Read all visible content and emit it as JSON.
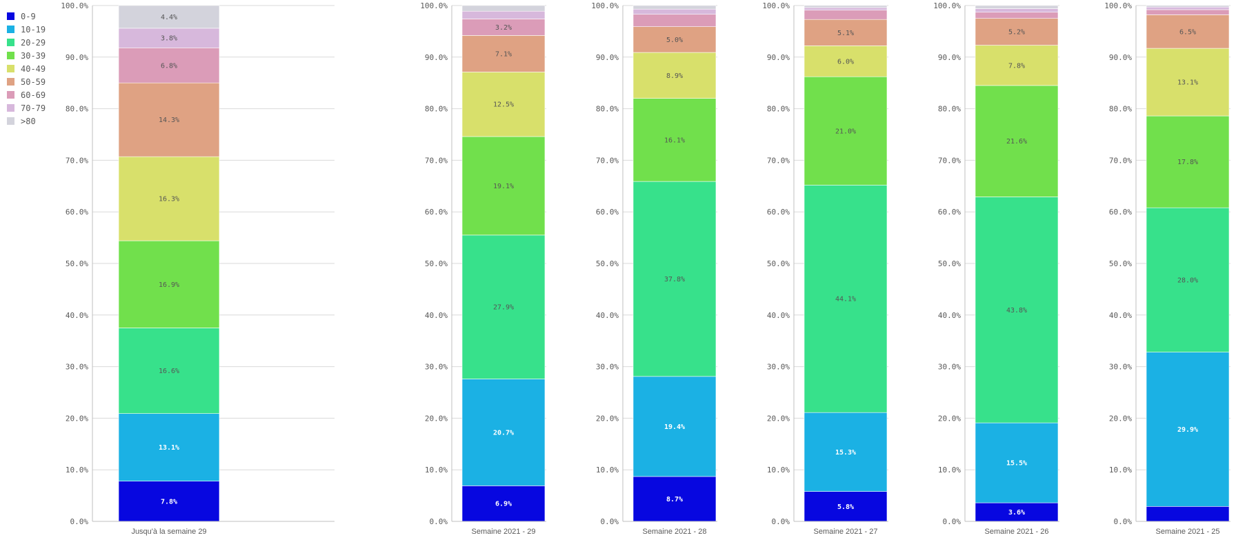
{
  "chart_data": {
    "type": "bar",
    "stacked": true,
    "normalized": true,
    "ylim": [
      0,
      100
    ],
    "y_ticks": [
      "0.0%",
      "10.0%",
      "20.0%",
      "30.0%",
      "40.0%",
      "50.0%",
      "60.0%",
      "70.0%",
      "80.0%",
      "90.0%",
      "100.0%"
    ],
    "grid": true,
    "legend_position": "top-left",
    "legend": [
      {
        "name": "0-9",
        "color": "#0707e0"
      },
      {
        "name": "10-19",
        "color": "#1bb1e4"
      },
      {
        "name": "20-29",
        "color": "#37e18b"
      },
      {
        "name": "30-39",
        "color": "#71e04c"
      },
      {
        "name": "40-49",
        "color": "#d8e06b"
      },
      {
        "name": "50-59",
        "color": "#dfa283"
      },
      {
        "name": "60-69",
        "color": "#db9cb8"
      },
      {
        "name": "70-79",
        "color": "#d7b8dc"
      },
      {
        "name": ">80",
        "color": "#d3d3dc"
      }
    ],
    "panels": [
      {
        "category": "Jusqu'à la semaine 29",
        "values": [
          7.8,
          13.1,
          16.6,
          16.9,
          16.3,
          14.3,
          6.8,
          3.8,
          4.4
        ],
        "labels": [
          "7.8%",
          "13.1%",
          "16.6%",
          "16.9%",
          "16.3%",
          "14.3%",
          "6.8%",
          "3.8%",
          "4.4%"
        ]
      },
      {
        "category": "Semaine 2021 - 29",
        "values": [
          6.9,
          20.7,
          27.9,
          19.1,
          12.5,
          7.1,
          3.2,
          1.5,
          1.1
        ],
        "labels": [
          "6.9%",
          "20.7%",
          "27.9%",
          "19.1%",
          "12.5%",
          "7.1%",
          "3.2%",
          "",
          ""
        ]
      },
      {
        "category": "Semaine 2021 - 28",
        "values": [
          8.7,
          19.4,
          37.8,
          16.1,
          8.9,
          5.0,
          2.4,
          1.0,
          0.7
        ],
        "labels": [
          "8.7%",
          "19.4%",
          "37.8%",
          "16.1%",
          "8.9%",
          "5.0%",
          "",
          "",
          ""
        ]
      },
      {
        "category": "Semaine 2021 - 27",
        "values": [
          5.8,
          15.3,
          44.1,
          21.0,
          6.0,
          5.1,
          1.8,
          0.5,
          0.4
        ],
        "labels": [
          "5.8%",
          "15.3%",
          "44.1%",
          "21.0%",
          "6.0%",
          "5.1%",
          "",
          "",
          ""
        ]
      },
      {
        "category": "Semaine 2021 - 26",
        "values": [
          3.6,
          15.5,
          43.8,
          21.6,
          7.8,
          5.2,
          1.2,
          0.7,
          0.6
        ],
        "labels": [
          "3.6%",
          "15.5%",
          "43.8%",
          "21.6%",
          "7.8%",
          "5.2%",
          "",
          "",
          ""
        ]
      },
      {
        "category": "Semaine 2021 - 25",
        "values": [
          2.9,
          29.9,
          28.0,
          17.8,
          13.1,
          6.5,
          1.0,
          0.5,
          0.3
        ],
        "labels": [
          "",
          "29.9%",
          "28.0%",
          "17.8%",
          "13.1%",
          "6.5%",
          "",
          "",
          ""
        ]
      }
    ]
  }
}
